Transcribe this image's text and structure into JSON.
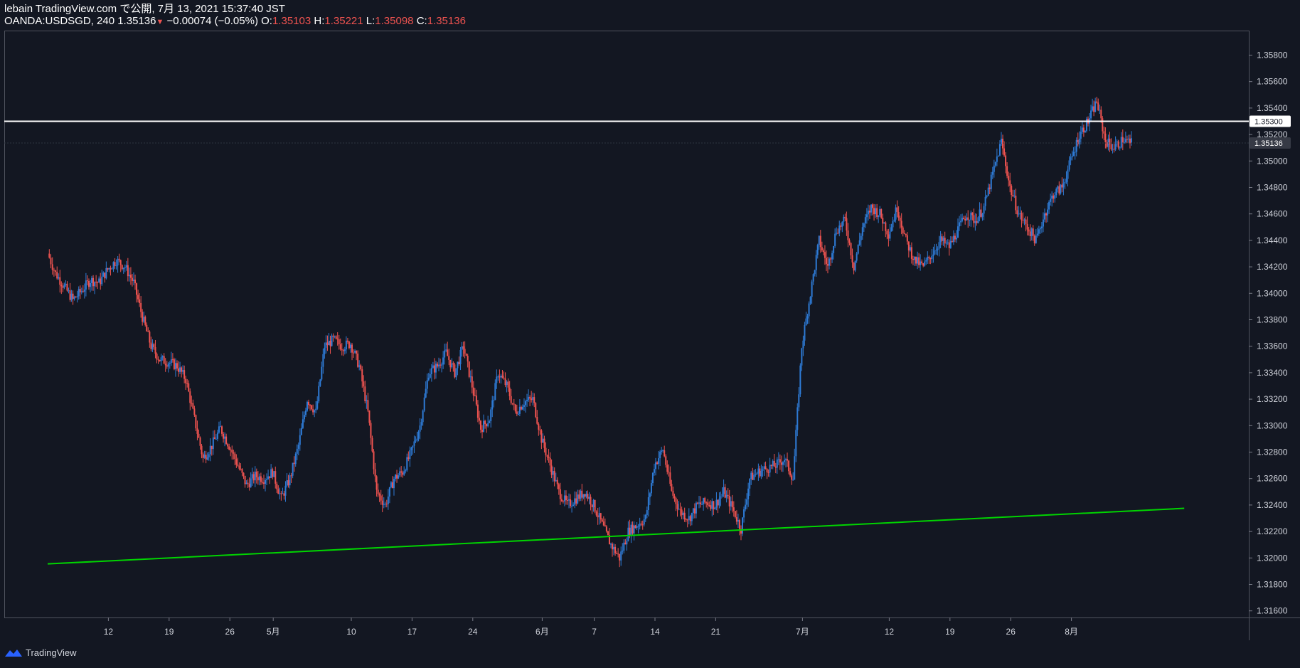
{
  "header": {
    "line1": "lebain TradingView.com で公開, 7月 13, 2021 15:37:40 JST",
    "symbol": "OANDA:USDSGD, 240",
    "last": "1.35136",
    "change": "−0.00074 (−0.05%)",
    "o_label": "O:",
    "o_value": "1.35103",
    "h_label": "H:",
    "h_value": "1.35221",
    "l_label": "L:",
    "l_value": "1.35098",
    "c_label": "C:",
    "c_value": "1.35136"
  },
  "footer": {
    "brand": "TradingView"
  },
  "colors": {
    "background": "#131722",
    "up": "#2e7bd6",
    "down": "#ef5350",
    "trendline": "#00d400",
    "hline": "#ffffff"
  },
  "chart_data": {
    "type": "candlestick",
    "ylim": [
      1.3155,
      1.3598
    ],
    "y_ticks": [
      "1.31600",
      "1.31800",
      "1.32000",
      "1.32200",
      "1.32400",
      "1.32600",
      "1.32800",
      "1.33000",
      "1.33200",
      "1.33400",
      "1.33600",
      "1.33800",
      "1.34000",
      "1.34200",
      "1.34400",
      "1.34600",
      "1.34800",
      "1.35000",
      "1.35200",
      "1.35400",
      "1.35600",
      "1.35800"
    ],
    "x_ticks": [
      {
        "label": "12",
        "day": 12
      },
      {
        "label": "19",
        "day": 19
      },
      {
        "label": "26",
        "day": 26
      },
      {
        "label": "5月",
        "day": 31
      },
      {
        "label": "10",
        "day": 40
      },
      {
        "label": "17",
        "day": 47
      },
      {
        "label": "24",
        "day": 54
      },
      {
        "label": "6月",
        "day": 62
      },
      {
        "label": "7",
        "day": 68
      },
      {
        "label": "14",
        "day": 75
      },
      {
        "label": "21",
        "day": 82
      },
      {
        "label": "7月",
        "day": 92
      },
      {
        "label": "12",
        "day": 102
      },
      {
        "label": "19",
        "day": 109
      },
      {
        "label": "26",
        "day": 116
      },
      {
        "label": "8月",
        "day": 123
      }
    ],
    "x_axis_note": "day offsets counted from 2021-03-31",
    "series": [
      {
        "name": "",
        "type": "close_path",
        "points": [
          [
            5.1,
            1.343
          ],
          [
            6,
            1.3415
          ],
          [
            7,
            1.3405
          ],
          [
            8,
            1.3395
          ],
          [
            9,
            1.3402
          ],
          [
            10,
            1.341
          ],
          [
            11,
            1.3408
          ],
          [
            12,
            1.3418
          ],
          [
            13,
            1.3425
          ],
          [
            14,
            1.342
          ],
          [
            15,
            1.3408
          ],
          [
            16,
            1.3382
          ],
          [
            17,
            1.336
          ],
          [
            18,
            1.335
          ],
          [
            19,
            1.3348
          ],
          [
            20,
            1.3345
          ],
          [
            21,
            1.3335
          ],
          [
            22,
            1.3305
          ],
          [
            23,
            1.3275
          ],
          [
            24,
            1.3285
          ],
          [
            25,
            1.3298
          ],
          [
            26,
            1.3285
          ],
          [
            27,
            1.327
          ],
          [
            28,
            1.3255
          ],
          [
            29,
            1.3262
          ],
          [
            30,
            1.326
          ],
          [
            31,
            1.3265
          ],
          [
            32,
            1.3245
          ],
          [
            33,
            1.326
          ],
          [
            34,
            1.3285
          ],
          [
            35,
            1.332
          ],
          [
            36,
            1.331
          ],
          [
            37,
            1.336
          ],
          [
            38,
            1.3365
          ],
          [
            39,
            1.336
          ],
          [
            40,
            1.3362
          ],
          [
            41,
            1.3345
          ],
          [
            42,
            1.331
          ],
          [
            43,
            1.325
          ],
          [
            44,
            1.324
          ],
          [
            45,
            1.326
          ],
          [
            46,
            1.3265
          ],
          [
            47,
            1.328
          ],
          [
            48,
            1.33
          ],
          [
            49,
            1.334
          ],
          [
            50,
            1.3345
          ],
          [
            51,
            1.3355
          ],
          [
            52,
            1.334
          ],
          [
            53,
            1.336
          ],
          [
            54,
            1.333
          ],
          [
            55,
            1.3298
          ],
          [
            56,
            1.3305
          ],
          [
            57,
            1.334
          ],
          [
            58,
            1.333
          ],
          [
            59,
            1.331
          ],
          [
            60,
            1.3318
          ],
          [
            61,
            1.332
          ],
          [
            62,
            1.329
          ],
          [
            63,
            1.327
          ],
          [
            64,
            1.325
          ],
          [
            65,
            1.324
          ],
          [
            66,
            1.3245
          ],
          [
            67,
            1.325
          ],
          [
            68,
            1.324
          ],
          [
            69,
            1.3225
          ],
          [
            70,
            1.321
          ],
          [
            71,
            1.32
          ],
          [
            72,
            1.322
          ],
          [
            73,
            1.3225
          ],
          [
            74,
            1.323
          ],
          [
            75,
            1.327
          ],
          [
            76,
            1.3282
          ],
          [
            77,
            1.325
          ],
          [
            78,
            1.3235
          ],
          [
            79,
            1.323
          ],
          [
            80,
            1.324
          ],
          [
            81,
            1.3242
          ],
          [
            82,
            1.324
          ],
          [
            83,
            1.325
          ],
          [
            84,
            1.3238
          ],
          [
            85,
            1.3222
          ],
          [
            86,
            1.326
          ],
          [
            87,
            1.3265
          ],
          [
            88,
            1.3268
          ],
          [
            89,
            1.327
          ],
          [
            90,
            1.3275
          ],
          [
            91,
            1.326
          ],
          [
            92,
            1.336
          ],
          [
            93,
            1.34
          ],
          [
            94,
            1.344
          ],
          [
            95,
            1.342
          ],
          [
            96,
            1.3448
          ],
          [
            97,
            1.3455
          ],
          [
            98,
            1.342
          ],
          [
            99,
            1.345
          ],
          [
            100,
            1.3465
          ],
          [
            101,
            1.346
          ],
          [
            102,
            1.3445
          ],
          [
            103,
            1.3465
          ],
          [
            104,
            1.344
          ],
          [
            105,
            1.3425
          ],
          [
            106,
            1.342
          ],
          [
            107,
            1.343
          ],
          [
            108,
            1.344
          ],
          [
            109,
            1.3435
          ],
          [
            110,
            1.3448
          ],
          [
            111,
            1.346
          ],
          [
            112,
            1.3455
          ],
          [
            113,
            1.3465
          ],
          [
            114,
            1.349
          ],
          [
            115,
            1.3515
          ],
          [
            116,
            1.348
          ],
          [
            117,
            1.346
          ],
          [
            118,
            1.345
          ],
          [
            119,
            1.344
          ],
          [
            120,
            1.346
          ],
          [
            121,
            1.3475
          ],
          [
            122,
            1.348
          ],
          [
            123,
            1.35
          ],
          [
            124,
            1.352
          ],
          [
            125,
            1.353
          ],
          [
            126,
            1.3545
          ],
          [
            127,
            1.3515
          ],
          [
            128,
            1.351
          ],
          [
            129,
            1.3516
          ],
          [
            130,
            1.35136
          ]
        ]
      },
      {
        "name": "",
        "type": "hline",
        "value": 1.353,
        "label": "1.35300"
      },
      {
        "name": "",
        "type": "trendline",
        "from": {
          "day": 5,
          "value": 1.31955
        },
        "to": {
          "day": 136,
          "value": 1.32375
        }
      }
    ],
    "last_price_label": "1.35136",
    "hline_label": "1.35300"
  }
}
